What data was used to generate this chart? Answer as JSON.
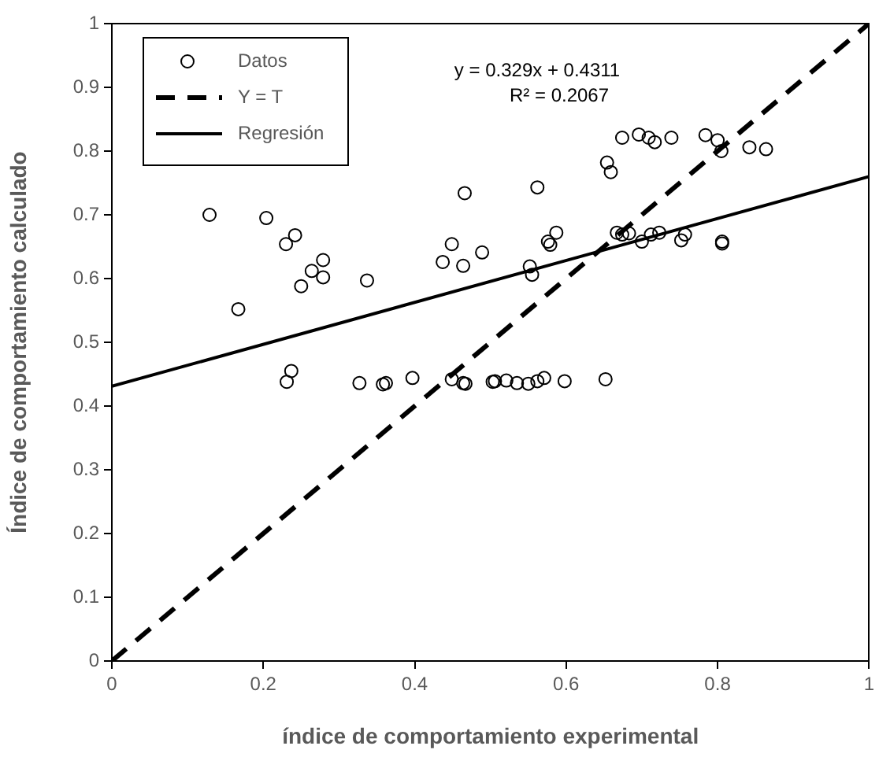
{
  "chart_data": {
    "type": "scatter",
    "xlabel": "índice de comportamiento experimental",
    "ylabel": "Índice de comportamiento calculado",
    "xlim": [
      0,
      1
    ],
    "xticks": [
      0,
      0.2,
      0.4,
      0.6,
      0.8,
      1
    ],
    "ylim": [
      0,
      1
    ],
    "yticks": [
      0,
      0.1,
      0.2,
      0.3,
      0.4,
      0.5,
      0.6,
      0.7,
      0.8,
      0.9,
      1
    ],
    "grid": false,
    "legend": "top left",
    "marker": "circle",
    "annotations": [
      "y = 0.329x + 0.4311",
      "R² = 0.2067"
    ],
    "series": [
      {
        "name": "Datos",
        "color": "#000000",
        "x": [
          0.129,
          0.204,
          0.23,
          0.242,
          0.264,
          0.279,
          0.279,
          0.25,
          0.337,
          0.167,
          0.466,
          0.437,
          0.449,
          0.464,
          0.489,
          0.237,
          0.231,
          0.327,
          0.358,
          0.362,
          0.397,
          0.449,
          0.464,
          0.467,
          0.506,
          0.503,
          0.521,
          0.535,
          0.55,
          0.562,
          0.571,
          0.598,
          0.652,
          0.674,
          0.696,
          0.709,
          0.717,
          0.739,
          0.784,
          0.8,
          0.805,
          0.842,
          0.864,
          0.654,
          0.659,
          0.562,
          0.587,
          0.576,
          0.579,
          0.552,
          0.555,
          0.667,
          0.674,
          0.683,
          0.7,
          0.712,
          0.723,
          0.752,
          0.757,
          0.806,
          0.806
        ],
        "values": [
          0.7,
          0.695,
          0.654,
          0.668,
          0.612,
          0.629,
          0.602,
          0.588,
          0.597,
          0.552,
          0.734,
          0.626,
          0.654,
          0.62,
          0.641,
          0.455,
          0.438,
          0.436,
          0.434,
          0.436,
          0.444,
          0.442,
          0.436,
          0.435,
          0.439,
          0.438,
          0.44,
          0.436,
          0.435,
          0.439,
          0.444,
          0.439,
          0.442,
          0.821,
          0.826,
          0.821,
          0.814,
          0.821,
          0.825,
          0.817,
          0.8,
          0.806,
          0.803,
          0.782,
          0.767,
          0.743,
          0.672,
          0.658,
          0.653,
          0.619,
          0.606,
          0.672,
          0.669,
          0.671,
          0.658,
          0.669,
          0.672,
          0.66,
          0.669,
          0.658,
          0.655
        ]
      },
      {
        "name": "Y = T",
        "type": "line",
        "color": "#000000",
        "line_style": "dashed",
        "marker": "none",
        "x": [
          0,
          1
        ],
        "values": [
          0,
          1
        ]
      },
      {
        "name": "Regresión",
        "type": "line",
        "color": "#000000",
        "line_style": "solid",
        "marker": "none",
        "x": [
          0,
          1
        ],
        "values": [
          0.431,
          0.76
        ]
      }
    ]
  }
}
